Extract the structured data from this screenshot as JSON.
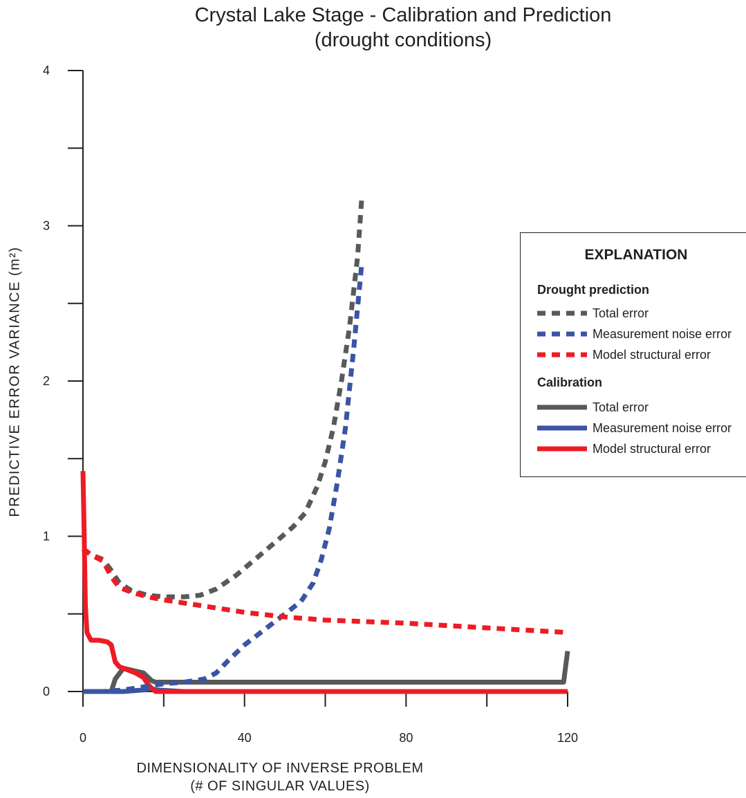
{
  "chart_data": {
    "type": "line",
    "title": [
      "Crystal Lake Stage - Calibration and Prediction",
      "(drought conditions)"
    ],
    "xlabel": [
      "DIMENSIONALITY OF INVERSE PROBLEM",
      "(# OF SINGULAR VALUES)"
    ],
    "ylabel": "PREDICTIVE  ERROR  VARIANCE (m²)",
    "xlim": [
      0,
      120
    ],
    "ylim": [
      0,
      4
    ],
    "x_ticks": [
      0,
      20,
      40,
      60,
      80,
      100,
      120
    ],
    "x_tick_labels": [
      {
        "value": 0,
        "label": "0"
      },
      {
        "value": 40,
        "label": "40"
      },
      {
        "value": 80,
        "label": "80"
      },
      {
        "value": 120,
        "label": "120"
      }
    ],
    "y_ticks": [
      0,
      0.5,
      1,
      1.5,
      2,
      2.5,
      3,
      3.5,
      4
    ],
    "y_tick_labels": [
      {
        "value": 0,
        "label": "0"
      },
      {
        "value": 1,
        "label": "1"
      },
      {
        "value": 2,
        "label": "2"
      },
      {
        "value": 3,
        "label": "3"
      },
      {
        "value": 4,
        "label": "4"
      }
    ],
    "grid": false,
    "legend": {
      "heading": "EXPLANATION",
      "placement": "right",
      "groups": [
        {
          "name": "Drought prediction",
          "entries": [
            {
              "label": "Total error",
              "color": "#58595b",
              "style": "dashed"
            },
            {
              "label": "Measurement noise error",
              "color": "#3b54a4",
              "style": "dashed"
            },
            {
              "label": "Model structural error",
              "color": "#ed1c24",
              "style": "dashed"
            }
          ]
        },
        {
          "name": "Calibration",
          "entries": [
            {
              "label": "Total error",
              "color": "#58595b",
              "style": "solid"
            },
            {
              "label": "Measurement noise error",
              "color": "#3b54a4",
              "style": "solid"
            },
            {
              "label": "Model structural error",
              "color": "#ed1c24",
              "style": "solid"
            }
          ]
        }
      ]
    },
    "series": [
      {
        "group": "Drought prediction",
        "name": "Total error",
        "style": "dashed",
        "color": "#58595b",
        "x": [
          0,
          2,
          5,
          7,
          9,
          12,
          16,
          20,
          25,
          29,
          33,
          38,
          43,
          48,
          52,
          55,
          58,
          60,
          62,
          64,
          66,
          68,
          69
        ],
        "y": [
          0.92,
          0.88,
          0.85,
          0.78,
          0.7,
          0.65,
          0.62,
          0.61,
          0.61,
          0.62,
          0.66,
          0.75,
          0.86,
          0.97,
          1.06,
          1.15,
          1.32,
          1.48,
          1.7,
          2.0,
          2.35,
          2.8,
          3.17
        ]
      },
      {
        "group": "Drought prediction",
        "name": "Measurement noise error",
        "style": "dashed",
        "color": "#3b54a4",
        "x": [
          0,
          5,
          10,
          15,
          20,
          25,
          30,
          33,
          36,
          40,
          45,
          50,
          54,
          57,
          59,
          61,
          63,
          65,
          67,
          69
        ],
        "y": [
          0.0,
          0.0,
          0.01,
          0.03,
          0.05,
          0.06,
          0.08,
          0.12,
          0.2,
          0.3,
          0.4,
          0.5,
          0.58,
          0.7,
          0.85,
          1.05,
          1.35,
          1.7,
          2.2,
          2.75
        ]
      },
      {
        "group": "Drought prediction",
        "name": "Model structural error",
        "style": "dashed",
        "color": "#ed1c24",
        "x": [
          0,
          2,
          5,
          7,
          9,
          12,
          16,
          20,
          30,
          40,
          50,
          60,
          80,
          100,
          120
        ],
        "y": [
          0.92,
          0.88,
          0.84,
          0.74,
          0.67,
          0.64,
          0.61,
          0.59,
          0.55,
          0.51,
          0.48,
          0.46,
          0.44,
          0.41,
          0.38
        ]
      },
      {
        "group": "Calibration",
        "name": "Total error",
        "style": "solid",
        "color": "#58595b",
        "x": [
          0,
          4,
          7,
          8,
          10,
          15,
          17,
          18,
          25,
          50,
          80,
          100,
          119,
          120
        ],
        "y": [
          0.0,
          0.0,
          0.0,
          0.08,
          0.15,
          0.12,
          0.07,
          0.06,
          0.06,
          0.06,
          0.06,
          0.06,
          0.06,
          0.26
        ]
      },
      {
        "group": "Calibration",
        "name": "Measurement noise error",
        "style": "solid",
        "color": "#3b54a4",
        "x": [
          0,
          5,
          10,
          15,
          17,
          18,
          25,
          50,
          80,
          100,
          120
        ],
        "y": [
          0.0,
          0.0,
          0.0,
          0.01,
          0.02,
          0.01,
          0.0,
          0.0,
          0.0,
          0.0,
          0.0
        ]
      },
      {
        "group": "Calibration",
        "name": "Model structural error",
        "style": "solid",
        "color": "#ed1c24",
        "x": [
          0,
          0.3,
          0.6,
          1,
          2,
          4,
          6,
          7,
          8,
          9,
          11,
          13,
          15,
          16,
          17,
          18,
          25,
          50,
          80,
          100,
          120
        ],
        "y": [
          1.42,
          1.0,
          0.55,
          0.38,
          0.33,
          0.33,
          0.32,
          0.3,
          0.19,
          0.16,
          0.14,
          0.12,
          0.09,
          0.05,
          0.02,
          0.0,
          0.0,
          0.0,
          0.0,
          0.0,
          0.0
        ]
      }
    ]
  }
}
